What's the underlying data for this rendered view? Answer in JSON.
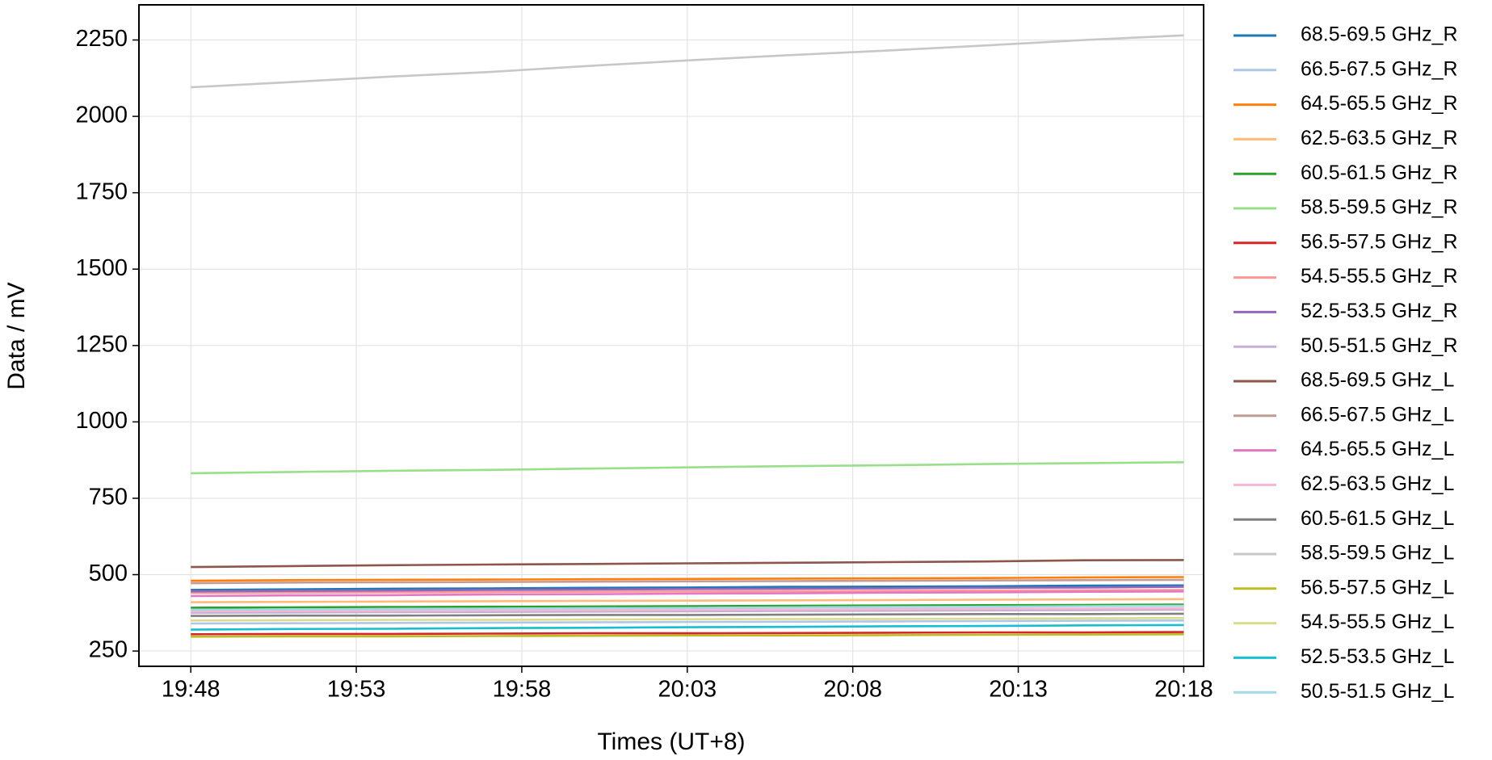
{
  "chart_data": {
    "type": "line",
    "xlabel": "Times (UT+8)",
    "ylabel": "Data / mV",
    "x": [
      "19:48",
      "19:51",
      "19:54",
      "19:57",
      "20:00",
      "20:03",
      "20:06",
      "20:09",
      "20:12",
      "20:15",
      "20:18"
    ],
    "xlim": [
      "19:46:26",
      "20:18:36"
    ],
    "xticks": [
      "19:48",
      "19:53",
      "19:58",
      "20:03",
      "20:08",
      "20:13",
      "20:18"
    ],
    "ylim": [
      200,
      2365
    ],
    "yticks": [
      250,
      500,
      750,
      1000,
      1250,
      1500,
      1750,
      2000,
      2250
    ],
    "grid": true,
    "legend": "outside right",
    "series": [
      {
        "name": "68.5-69.5 GHz_R",
        "color": "#1f77b4",
        "values": [
          450,
          452,
          454,
          455,
          457,
          458,
          460,
          461,
          462,
          464,
          465
        ]
      },
      {
        "name": "66.5-67.5 GHz_R",
        "color": "#aec7e8",
        "values": [
          340,
          341,
          342,
          343,
          344,
          345,
          346,
          347,
          348,
          349,
          350
        ]
      },
      {
        "name": "64.5-65.5 GHz_R",
        "color": "#ff7f0e",
        "values": [
          480,
          482,
          483,
          484,
          485,
          486,
          487,
          488,
          489,
          491,
          492
        ]
      },
      {
        "name": "62.5-63.5 GHz_R",
        "color": "#ffbb78",
        "values": [
          410,
          411,
          412,
          413,
          414,
          415,
          416,
          417,
          418,
          419,
          420
        ]
      },
      {
        "name": "60.5-61.5 GHz_R",
        "color": "#2ca02c",
        "values": [
          392,
          393,
          394,
          395,
          396,
          397,
          398,
          399,
          400,
          401,
          402
        ]
      },
      {
        "name": "58.5-59.5 GHz_R",
        "color": "#98df8a",
        "values": [
          832,
          836,
          840,
          843,
          847,
          851,
          855,
          858,
          862,
          865,
          868
        ]
      },
      {
        "name": "56.5-57.5 GHz_R",
        "color": "#d62728",
        "values": [
          305,
          306,
          306,
          307,
          308,
          308,
          309,
          310,
          311,
          311,
          312
        ]
      },
      {
        "name": "54.5-55.5 GHz_R",
        "color": "#ff9896",
        "values": [
          440,
          441,
          442,
          443,
          444,
          445,
          446,
          447,
          448,
          449,
          450
        ]
      },
      {
        "name": "52.5-53.5 GHz_R",
        "color": "#9467bd",
        "values": [
          445,
          447,
          448,
          450,
          451,
          453,
          454,
          455,
          457,
          458,
          460
        ]
      },
      {
        "name": "50.5-51.5 GHz_R",
        "color": "#c5b0d5",
        "values": [
          375,
          376,
          377,
          378,
          379,
          380,
          381,
          382,
          383,
          384,
          385
        ]
      },
      {
        "name": "68.5-69.5 GHz_L",
        "color": "#8c564b",
        "values": [
          525,
          528,
          531,
          533,
          535,
          537,
          539,
          541,
          543,
          547,
          548
        ]
      },
      {
        "name": "66.5-67.5 GHz_L",
        "color": "#c49c94",
        "values": [
          472,
          474,
          475,
          476,
          477,
          478,
          479,
          480,
          481,
          482,
          483
        ]
      },
      {
        "name": "64.5-65.5 GHz_L",
        "color": "#e377c2",
        "values": [
          430,
          432,
          433,
          435,
          436,
          438,
          439,
          441,
          442,
          444,
          445
        ]
      },
      {
        "name": "62.5-63.5 GHz_L",
        "color": "#f7b6d2",
        "values": [
          380,
          381,
          382,
          383,
          384,
          385,
          386,
          387,
          388,
          389,
          390
        ]
      },
      {
        "name": "60.5-61.5 GHz_L",
        "color": "#7f7f7f",
        "values": [
          365,
          366,
          366,
          367,
          368,
          368,
          369,
          370,
          371,
          371,
          372
        ]
      },
      {
        "name": "58.5-59.5 GHz_L",
        "color": "#c7c7c7",
        "values": [
          2095,
          2112,
          2130,
          2145,
          2165,
          2183,
          2200,
          2215,
          2232,
          2250,
          2265
        ]
      },
      {
        "name": "56.5-57.5 GHz_L",
        "color": "#bcbd22",
        "values": [
          297,
          298,
          298,
          299,
          300,
          301,
          301,
          302,
          303,
          304,
          305
        ]
      },
      {
        "name": "54.5-55.5 GHz_L",
        "color": "#dbdb8d",
        "values": [
          350,
          351,
          352,
          352,
          353,
          354,
          355,
          355,
          356,
          357,
          358
        ]
      },
      {
        "name": "52.5-53.5 GHz_L",
        "color": "#17becf",
        "values": [
          320,
          322,
          323,
          325,
          326,
          328,
          329,
          331,
          332,
          334,
          335
        ]
      },
      {
        "name": "50.5-51.5 GHz_L",
        "color": "#9edae5",
        "values": [
          385,
          386,
          388,
          389,
          390,
          391,
          393,
          394,
          395,
          397,
          398
        ]
      }
    ]
  }
}
